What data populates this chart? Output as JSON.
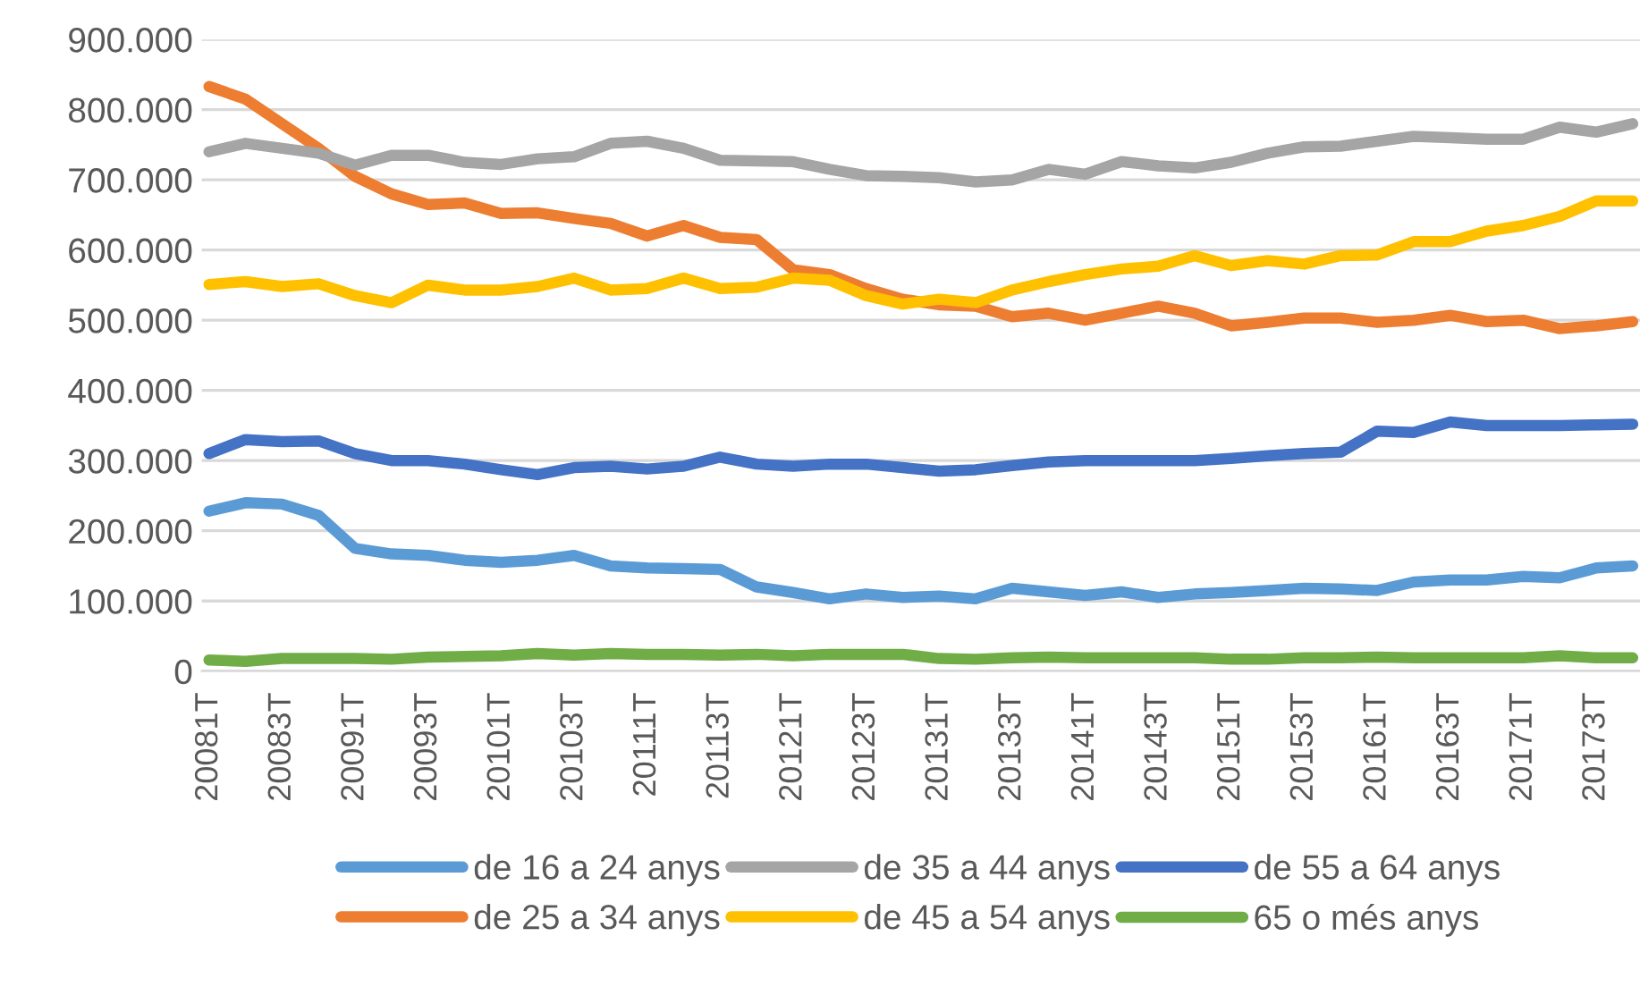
{
  "chart_data": {
    "type": "line",
    "categories": [
      "20081T",
      null,
      "20083T",
      null,
      "20091T",
      null,
      "20093T",
      null,
      "20101T",
      null,
      "20103T",
      null,
      "20111T",
      null,
      "20113T",
      null,
      "20121T",
      null,
      "20123T",
      null,
      "20131T",
      null,
      "20133T",
      null,
      "20141T",
      null,
      "20143T",
      null,
      "20151T",
      null,
      "20153T",
      null,
      "20161T",
      null,
      "20163T",
      null,
      "20171T",
      null,
      "20173T",
      null
    ],
    "series": [
      {
        "name": "de 16 a 24 anys",
        "color": "#5b9bd5",
        "values": [
          228000,
          240000,
          238000,
          222000,
          175000,
          167000,
          165000,
          158000,
          155000,
          158000,
          165000,
          150000,
          147000,
          146000,
          145000,
          120000,
          112000,
          103000,
          110000,
          105000,
          107000,
          103000,
          118000,
          113000,
          108000,
          113000,
          105000,
          110000,
          112000,
          115000,
          118000,
          117000,
          115000,
          127000,
          130000,
          130000,
          135000,
          133000,
          147000,
          150000
        ]
      },
      {
        "name": "de 25 a 34 anys",
        "color": "#ed7d31",
        "values": [
          833000,
          815000,
          780000,
          745000,
          705000,
          680000,
          665000,
          667000,
          652000,
          653000,
          645000,
          638000,
          620000,
          635000,
          618000,
          615000,
          572000,
          565000,
          545000,
          530000,
          522000,
          520000,
          505000,
          510000,
          500000,
          510000,
          520000,
          510000,
          492000,
          497000,
          503000,
          503000,
          497000,
          500000,
          507000,
          498000,
          500000,
          488000,
          492000,
          498000
        ]
      },
      {
        "name": "de 35 a 44 anys",
        "color": "#a5a5a5",
        "values": [
          740000,
          752000,
          745000,
          738000,
          721000,
          735000,
          735000,
          725000,
          722000,
          730000,
          733000,
          752000,
          755000,
          745000,
          728000,
          727000,
          726000,
          715000,
          706000,
          705000,
          703000,
          697000,
          700000,
          715000,
          708000,
          726000,
          720000,
          717000,
          725000,
          738000,
          747000,
          748000,
          755000,
          762000,
          760000,
          758000,
          758000,
          775000,
          768000,
          780000
        ]
      },
      {
        "name": "de 45 a 54 anys",
        "color": "#ffc000",
        "values": [
          551000,
          555000,
          548000,
          552000,
          535000,
          525000,
          550000,
          543000,
          543000,
          548000,
          560000,
          543000,
          545000,
          560000,
          545000,
          547000,
          560000,
          557000,
          535000,
          523000,
          530000,
          525000,
          543000,
          555000,
          565000,
          573000,
          577000,
          592000,
          578000,
          585000,
          580000,
          592000,
          593000,
          612000,
          612000,
          627000,
          635000,
          648000,
          670000,
          670000
        ]
      },
      {
        "name": "de 55 a 64 anys",
        "color": "#4472c4",
        "values": [
          310000,
          330000,
          327000,
          328000,
          310000,
          300000,
          300000,
          295000,
          287000,
          280000,
          290000,
          292000,
          288000,
          292000,
          305000,
          295000,
          292000,
          295000,
          295000,
          290000,
          285000,
          287000,
          293000,
          298000,
          300000,
          300000,
          300000,
          300000,
          303000,
          307000,
          310000,
          312000,
          342000,
          340000,
          355000,
          350000,
          350000,
          350000,
          351000,
          352000
        ]
      },
      {
        "name": "65 o més anys",
        "color": "#70ad47",
        "values": [
          16000,
          14000,
          18000,
          18000,
          18000,
          17000,
          20000,
          21000,
          22000,
          25000,
          23000,
          25000,
          24000,
          24000,
          23000,
          24000,
          22000,
          24000,
          24000,
          24000,
          18000,
          17000,
          19000,
          20000,
          19000,
          19000,
          19000,
          19000,
          17000,
          17000,
          19000,
          19000,
          20000,
          19000,
          19000,
          19000,
          19000,
          22000,
          19000,
          19000
        ]
      }
    ],
    "ylim": [
      0,
      900000
    ],
    "yticks": [
      {
        "value": 0,
        "label": "0"
      },
      {
        "value": 100000,
        "label": "100.000"
      },
      {
        "value": 200000,
        "label": "200.000"
      },
      {
        "value": 300000,
        "label": "300.000"
      },
      {
        "value": 400000,
        "label": "400.000"
      },
      {
        "value": 500000,
        "label": "500.000"
      },
      {
        "value": 600000,
        "label": "600.000"
      },
      {
        "value": 700000,
        "label": "700.000"
      },
      {
        "value": 800000,
        "label": "800.000"
      },
      {
        "value": 900000,
        "label": "900.000"
      }
    ],
    "grid": "y",
    "legend": "bottom",
    "marker": "none",
    "line_style": "solid"
  }
}
